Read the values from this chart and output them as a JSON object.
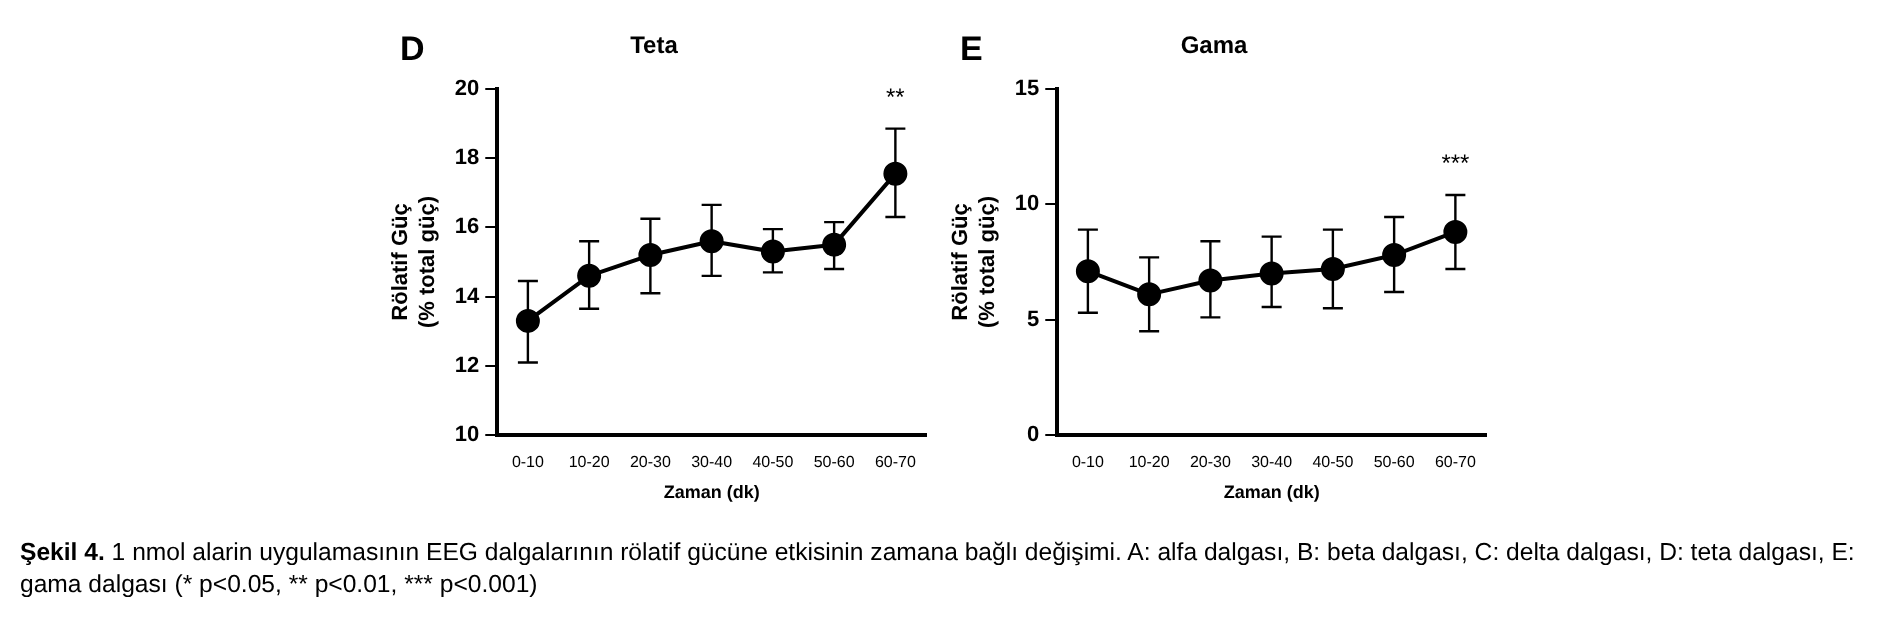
{
  "chart_data": [
    {
      "type": "line",
      "title": "Teta",
      "xlabel": "Zaman (dk)",
      "ylabel": "Rölatif Güç\n(% total güç)",
      "categories": [
        "0-10",
        "10-20",
        "20-30",
        "30-40",
        "40-50",
        "50-60",
        "60-70"
      ],
      "series": [
        {
          "color": "#000000",
          "values": [
            13.3,
            14.6,
            15.2,
            15.6,
            15.3,
            15.5,
            17.55
          ],
          "errors": [
            [
              12.1,
              14.45
            ],
            [
              13.65,
              15.6
            ],
            [
              14.1,
              16.25
            ],
            [
              14.6,
              16.65
            ],
            [
              14.7,
              15.95
            ],
            [
              14.8,
              16.15
            ],
            [
              16.3,
              18.85
            ]
          ]
        }
      ],
      "ylim": [
        10,
        20
      ],
      "yticks": [
        10,
        12,
        14,
        16,
        18,
        20
      ],
      "grid": false,
      "legend": false,
      "marker": "circle",
      "line_style": "solid",
      "annotations": [
        "D",
        "**",
        "Şekil 4. 1 nmol alarin uygulamasının EEG dalgalarının rölatif gücüne etkisinin zamana bağlı değişimi. A: alfa dalgası, B: beta dalgası, C: delta dalgası, D: teta dalgası, E: gama dalgası (* p<0.05, ** p<0.01, *** p<0.001)"
      ]
    },
    {
      "type": "line",
      "title": "Gama",
      "xlabel": "Zaman (dk)",
      "ylabel": "Rölatif Güç\n(% total güç)",
      "categories": [
        "0-10",
        "10-20",
        "20-30",
        "30-40",
        "40-50",
        "50-60",
        "60-70"
      ],
      "series": [
        {
          "color": "#000000",
          "values": [
            7.1,
            6.1,
            6.7,
            7.0,
            7.2,
            7.8,
            8.8
          ],
          "errors": [
            [
              5.3,
              8.9
            ],
            [
              4.5,
              7.7
            ],
            [
              5.1,
              8.4
            ],
            [
              5.55,
              8.6
            ],
            [
              5.5,
              8.9
            ],
            [
              6.2,
              9.45
            ],
            [
              7.2,
              10.4
            ]
          ]
        }
      ],
      "ylim": [
        0,
        15
      ],
      "yticks": [
        0,
        5,
        10,
        15
      ],
      "grid": false,
      "legend": false,
      "marker": "circle",
      "line_style": "solid",
      "annotations": [
        "E",
        "***"
      ]
    }
  ]
}
